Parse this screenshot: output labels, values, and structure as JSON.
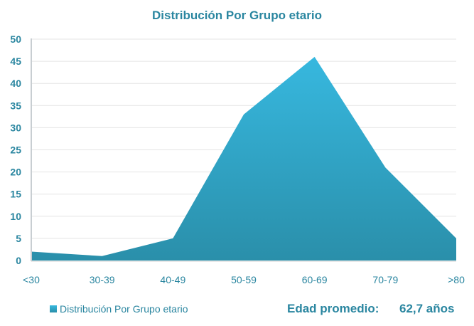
{
  "title": "Distribución Por Grupo etario",
  "legend": {
    "label": "Distribución Por Grupo etario"
  },
  "average": {
    "label": "Edad promedio:",
    "value": "62,7 años"
  },
  "colors": {
    "text": "#2a86a0",
    "area_top": "#37b8df",
    "area_bottom": "#2a8faa",
    "grid": "#e4e4e4"
  },
  "chart_data": {
    "type": "area",
    "title": "Distribución Por Grupo etario",
    "categories": [
      "<30",
      "30-39",
      "40-49",
      "50-59",
      "60-69",
      "70-79",
      ">80"
    ],
    "series": [
      {
        "name": "Distribución Por Grupo etario",
        "values": [
          2,
          1,
          5,
          33,
          46,
          21,
          5
        ]
      }
    ],
    "xlabel": "",
    "ylabel": "",
    "ylim": [
      0,
      50
    ],
    "yticks": [
      0,
      5,
      10,
      15,
      20,
      25,
      30,
      35,
      40,
      45,
      50
    ],
    "grid": true,
    "legend_position": "bottom-left",
    "annotations": [
      "Edad promedio: 62,7 años"
    ]
  }
}
